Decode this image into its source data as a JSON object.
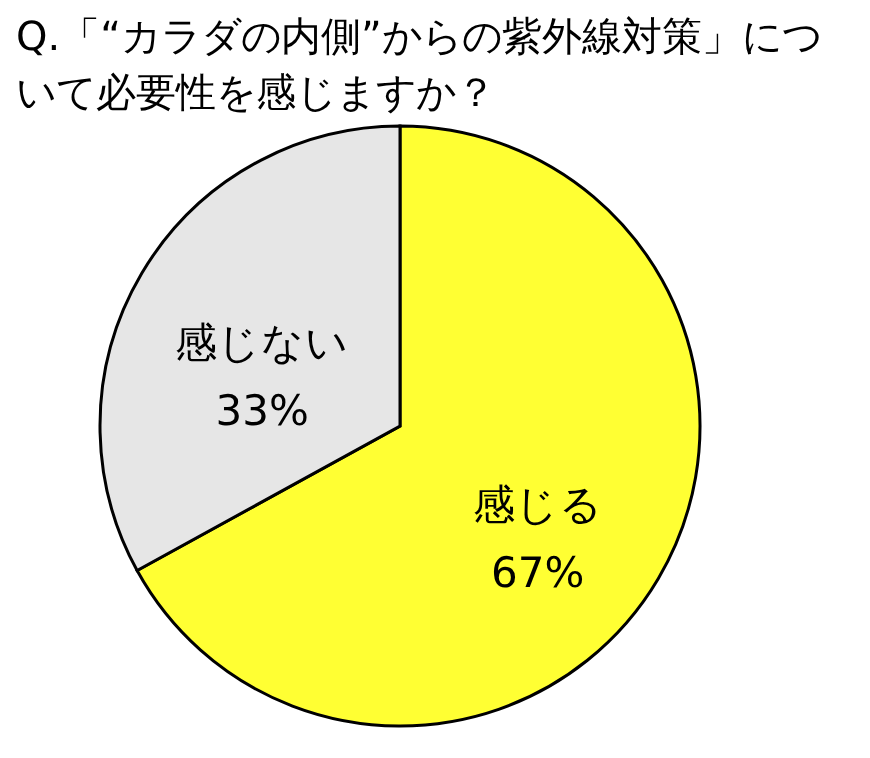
{
  "chart_data": {
    "type": "pie",
    "title": "Q.「“カラダの内側”からの紫外線対策」について必要性を感じますか？",
    "categories": [
      "感じる",
      "感じない"
    ],
    "values": [
      67,
      33
    ],
    "colors": [
      "#ffff33",
      "#e6e6e6"
    ],
    "value_labels": [
      "67%",
      "33%"
    ],
    "legend": false
  }
}
